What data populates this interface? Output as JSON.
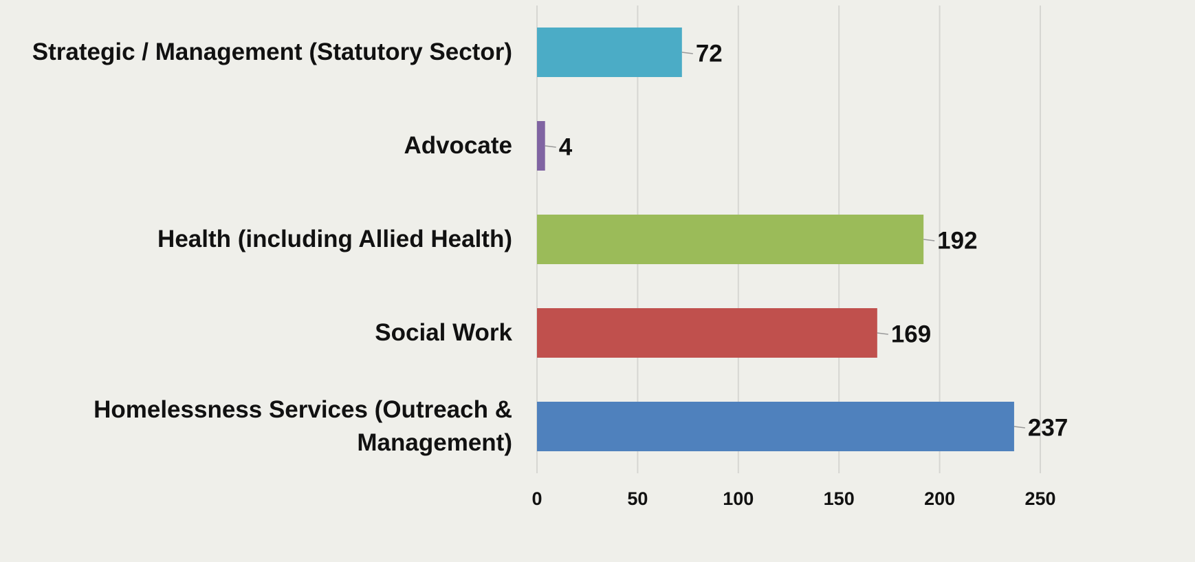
{
  "chart_data": {
    "type": "bar",
    "orientation": "horizontal",
    "categories": [
      "Strategic / Management (Statutory Sector)",
      "Advocate",
      "Health (including Allied Health)",
      "Social Work",
      "Homelessness Services (Outreach & Management)"
    ],
    "values": [
      72,
      4,
      192,
      169,
      237
    ],
    "colors": [
      "#4bacc6",
      "#8064a2",
      "#9bbb59",
      "#c0504d",
      "#4f81bd"
    ],
    "xlim": [
      0,
      250
    ],
    "xticks": [
      0,
      50,
      100,
      150,
      200,
      250
    ],
    "grid": true
  }
}
